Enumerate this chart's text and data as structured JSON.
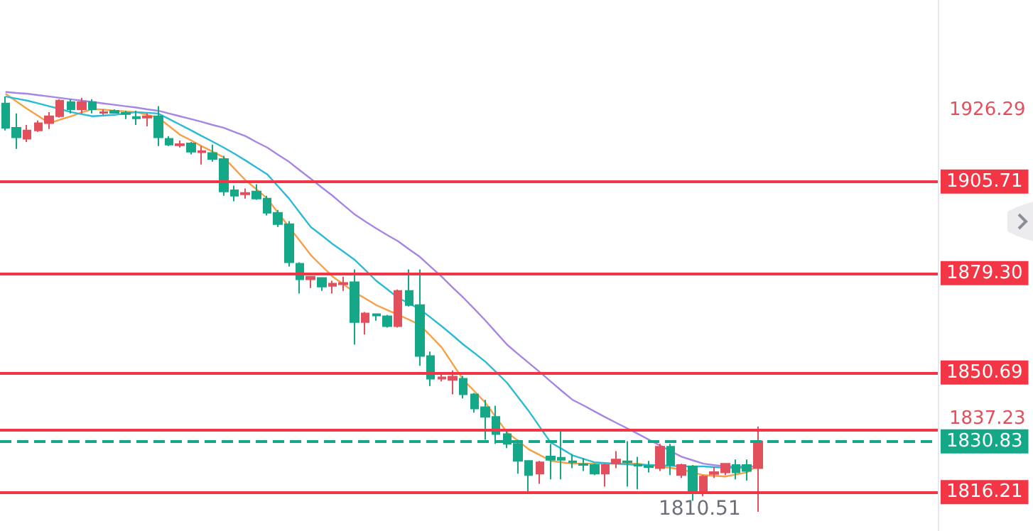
{
  "chart_data": {
    "type": "candlestick",
    "categories": [
      null,
      null,
      null,
      null,
      null,
      null,
      null,
      null,
      null,
      null,
      null,
      null,
      null,
      null,
      null,
      null,
      null,
      null,
      null,
      null,
      null,
      null,
      null,
      null,
      null,
      null,
      null,
      null,
      null,
      null,
      null,
      null,
      null,
      null,
      null,
      null,
      null,
      null,
      null,
      null,
      null,
      null,
      null,
      null,
      null,
      null,
      null,
      null,
      null,
      null,
      null,
      null,
      null,
      null,
      null,
      null,
      null,
      null,
      null,
      null,
      null,
      null,
      null,
      null,
      null,
      null,
      null,
      null,
      null,
      null,
      null,
      null,
      null,
      null,
      null,
      null,
      null,
      null,
      null,
      null,
      null,
      null,
      null,
      null,
      null,
      null
    ],
    "ohlc": [
      [
        1928.2,
        1930.2,
        1920.4,
        1921.2
      ],
      [
        1921.2,
        1925.3,
        1915.1,
        1918.4
      ],
      [
        1918.0,
        1922.0,
        1917.1,
        1920.4
      ],
      [
        1920.4,
        1923.3,
        1920.0,
        1922.5
      ],
      [
        1922.5,
        1925.7,
        1920.8,
        1924.5
      ],
      [
        1924.5,
        1929.4,
        1924.1,
        1929.0
      ],
      [
        1928.6,
        1929.4,
        1925.3,
        1926.5
      ],
      [
        1926.5,
        1929.8,
        1925.3,
        1928.6
      ],
      [
        1928.6,
        1929.4,
        1925.3,
        1926.5
      ],
      [
        1925.5,
        1926.5,
        1924.9,
        1925.7
      ],
      [
        1926.1,
        1926.5,
        1925.3,
        1925.5
      ],
      [
        1925.5,
        1926.1,
        1923.7,
        1925.1
      ],
      [
        1924.3,
        1926.1,
        1922.0,
        1923.9
      ],
      [
        1924.1,
        1925.3,
        1921.6,
        1924.5
      ],
      [
        1924.5,
        1927.4,
        1915.9,
        1918.4
      ],
      [
        1918.0,
        1918.8,
        1915.9,
        1916.3
      ],
      [
        1916.1,
        1917.5,
        1915.5,
        1916.5
      ],
      [
        1916.7,
        1917.1,
        1913.5,
        1914.3
      ],
      [
        1914.1,
        1915.9,
        1910.6,
        1914.5
      ],
      [
        1913.9,
        1916.3,
        1911.4,
        1912.2
      ],
      [
        1912.2,
        1913.1,
        1901.6,
        1902.8
      ],
      [
        1903.2,
        1904.5,
        1900.0,
        1901.6
      ],
      [
        1902.0,
        1903.7,
        1900.8,
        1902.4
      ],
      [
        1902.8,
        1904.9,
        1900.4,
        1900.8
      ],
      [
        1900.8,
        1901.6,
        1895.9,
        1896.7
      ],
      [
        1896.7,
        1897.5,
        1892.6,
        1893.4
      ],
      [
        1893.4,
        1894.3,
        1881.2,
        1882.4
      ],
      [
        1882.0,
        1882.4,
        1873.4,
        1877.5
      ],
      [
        1877.5,
        1878.3,
        1875.0,
        1878.3
      ],
      [
        1877.9,
        1877.9,
        1874.2,
        1875.4
      ],
      [
        1875.6,
        1877.1,
        1873.4,
        1876.3
      ],
      [
        1876.1,
        1878.3,
        1874.2,
        1876.5
      ],
      [
        1876.7,
        1880.4,
        1858.7,
        1865.2
      ],
      [
        1865.2,
        1868.1,
        1861.6,
        1867.7
      ],
      [
        1867.5,
        1867.7,
        1865.6,
        1867.1
      ],
      [
        1866.9,
        1867.3,
        1863.6,
        1864.0
      ],
      [
        1864.0,
        1874.6,
        1863.6,
        1874.2
      ],
      [
        1874.2,
        1880.4,
        1869.7,
        1870.1
      ],
      [
        1870.1,
        1880.4,
        1852.6,
        1855.4
      ],
      [
        1855.4,
        1856.7,
        1846.8,
        1848.9
      ],
      [
        1848.9,
        1850.1,
        1848.1,
        1849.3
      ],
      [
        1848.5,
        1851.3,
        1844.4,
        1849.5
      ],
      [
        1848.9,
        1849.7,
        1843.2,
        1844.4
      ],
      [
        1844.4,
        1844.8,
        1839.1,
        1840.3
      ],
      [
        1840.7,
        1842.8,
        1831.3,
        1837.9
      ],
      [
        1837.9,
        1841.1,
        1830.1,
        1832.9
      ],
      [
        1832.9,
        1833.8,
        1828.9,
        1830.1
      ],
      [
        1830.1,
        1831.3,
        1821.5,
        1825.2
      ],
      [
        1825.2,
        1825.2,
        1816.2,
        1821.1
      ],
      [
        1821.5,
        1825.2,
        1818.6,
        1824.8
      ],
      [
        1826.5,
        1830.1,
        1819.9,
        1825.5
      ],
      [
        1826.1,
        1834.2,
        1819.9,
        1825.5
      ],
      [
        1825.1,
        1827.2,
        1823.1,
        1824.8
      ],
      [
        1824.3,
        1826.0,
        1822.3,
        1824.0
      ],
      [
        1824.0,
        1824.4,
        1821.1,
        1821.5
      ],
      [
        1821.5,
        1824.4,
        1817.8,
        1824.0
      ],
      [
        1824.5,
        1828.0,
        1823.1,
        1825.6
      ],
      [
        1825.1,
        1830.9,
        1817.8,
        1824.8
      ],
      [
        1824.1,
        1826.4,
        1817.0,
        1823.8
      ],
      [
        1823.7,
        1825.2,
        1821.9,
        1823.4
      ],
      [
        1823.1,
        1830.1,
        1822.3,
        1829.3
      ],
      [
        1829.3,
        1830.1,
        1821.1,
        1824.0
      ],
      [
        1821.1,
        1824.4,
        1820.3,
        1824.0
      ],
      [
        1823.6,
        1824.0,
        1813.7,
        1816.2
      ],
      [
        1816.2,
        1821.1,
        1815.0,
        1820.7
      ],
      [
        1821.4,
        1823.5,
        1820.3,
        1822.0
      ],
      [
        1821.9,
        1824.4,
        1821.1,
        1824.4
      ],
      [
        1824.0,
        1825.6,
        1819.9,
        1821.9
      ],
      [
        1824.0,
        1825.6,
        1819.5,
        1822.3
      ],
      [
        1823.1,
        1835.1,
        1810.51,
        1830.83
      ],
      null,
      null,
      null,
      null,
      null,
      null,
      null,
      null,
      null,
      null,
      null,
      null,
      null,
      null,
      null,
      null
    ],
    "colors": [
      "#14a889",
      "#14a889",
      "#e2505d",
      "#e2505d",
      "#e2505d",
      "#e2505d",
      "#14a889",
      "#e2505d",
      "#14a889",
      "#e2505d",
      "#14a889",
      "#14a889",
      "#14a889",
      "#e2505d",
      "#14a889",
      "#14a889",
      "#e2505d",
      "#14a889",
      "#e2505d",
      "#14a889",
      "#14a889",
      "#14a889",
      "#e2505d",
      "#14a889",
      "#14a889",
      "#14a889",
      "#14a889",
      "#14a889",
      "#e2505d",
      "#14a889",
      "#e2505d",
      "#e2505d",
      "#14a889",
      "#e2505d",
      "#14a889",
      "#14a889",
      "#e2505d",
      "#14a889",
      "#14a889",
      "#14a889",
      "#e2505d",
      "#e2505d",
      "#14a889",
      "#14a889",
      "#14a889",
      "#14a889",
      "#14a889",
      "#14a889",
      "#14a889",
      "#e2505d",
      "#14a889",
      "#14a889",
      "#14a889",
      "#14a889",
      "#14a889",
      "#e2505d",
      "#e2505d",
      "#14a889",
      "#14a889",
      "#14a889",
      "#e2505d",
      "#14a889",
      "#e2505d",
      "#14a889",
      "#e2505d",
      "#e2505d",
      "#e2505d",
      "#14a889",
      "#14a889",
      "#e2505d",
      null,
      null,
      null,
      null,
      null,
      null,
      null,
      null,
      null,
      null,
      null,
      null,
      null,
      null,
      null,
      null
    ],
    "series": [
      {
        "type": "line",
        "color": "#f7a045",
        "values": [
          1931.0,
          1928.8,
          1926.6,
          1924.6,
          1922.5,
          1923.5,
          1924.5,
          1925.6,
          1926.6,
          1926.4,
          1926.1,
          1925.9,
          1925.7,
          1924.9,
          1924.1,
          1921.7,
          1919.2,
          1917.6,
          1915.9,
          1914.3,
          1912.7,
          1909.4,
          1906.1,
          1903.5,
          1900.8,
          1896.7,
          1892.6,
          1888.6,
          1884.5,
          1881.4,
          1878.3,
          1876.1,
          1873.8,
          1872.0,
          1870.1,
          1868.7,
          1867.3,
          1865.9,
          1864.4,
          1861.2,
          1857.9,
          1853.2,
          1848.5,
          1845.3,
          1842.0,
          1837.7,
          1833.4,
          1831.0,
          1828.5,
          1826.9,
          1825.2,
          1824.8,
          1824.4,
          1824.4,
          1824.4,
          1824.4,
          1824.4,
          1824.4,
          1824.4,
          1824.0,
          1823.6,
          1823.2,
          1822.7,
          1821.9,
          1821.1,
          1820.9,
          1820.7,
          1821.3,
          1821.9,
          1824.0,
          null,
          null,
          null,
          null,
          null,
          null,
          null,
          null,
          null,
          null,
          null,
          null,
          null,
          null,
          null,
          null
        ]
      },
      {
        "type": "line",
        "color": "#2bbbd6",
        "values": [
          1930.2,
          1929.6,
          1929.0,
          1928.2,
          1927.4,
          1926.6,
          1925.7,
          1925.1,
          1924.5,
          1924.7,
          1924.9,
          1925.3,
          1925.7,
          1925.5,
          1925.3,
          1923.7,
          1922.1,
          1920.5,
          1918.8,
          1917.2,
          1915.5,
          1913.7,
          1911.8,
          1909.8,
          1907.8,
          1904.3,
          1900.8,
          1896.7,
          1892.6,
          1890.2,
          1887.7,
          1885.5,
          1883.2,
          1880.2,
          1877.1,
          1874.7,
          1872.2,
          1870.6,
          1868.9,
          1866.5,
          1864.0,
          1861.4,
          1858.7,
          1856.3,
          1853.8,
          1850.8,
          1847.7,
          1843.6,
          1839.5,
          1835.0,
          1830.5,
          1828.7,
          1826.8,
          1825.8,
          1824.8,
          1824.6,
          1824.4,
          1824.2,
          1824.0,
          1824.0,
          1824.0,
          1823.8,
          1823.6,
          1823.6,
          1823.6,
          1823.4,
          1823.2,
          1823.2,
          1823.2,
          null,
          null,
          null,
          null,
          null,
          null,
          null,
          null,
          null,
          null,
          null,
          null,
          null,
          null,
          null,
          null,
          null
        ]
      },
      {
        "type": "line",
        "color": "#a686e4",
        "values": [
          1931.5,
          1931.2,
          1931.0,
          1930.6,
          1930.2,
          1929.8,
          1929.4,
          1929.0,
          1928.6,
          1928.2,
          1927.8,
          1927.4,
          1927.0,
          1926.5,
          1926.1,
          1925.3,
          1924.5,
          1923.7,
          1922.9,
          1922.0,
          1921.2,
          1920.0,
          1918.8,
          1917.1,
          1915.5,
          1913.4,
          1911.4,
          1908.9,
          1906.5,
          1904.0,
          1901.6,
          1898.9,
          1896.3,
          1894.2,
          1892.2,
          1890.3,
          1888.5,
          1886.2,
          1884.0,
          1881.1,
          1878.3,
          1875.2,
          1872.2,
          1869.0,
          1865.7,
          1862.2,
          1858.7,
          1856.0,
          1853.4,
          1850.8,
          1848.1,
          1845.4,
          1842.8,
          1841.2,
          1839.5,
          1837.8,
          1836.2,
          1834.6,
          1833.0,
          1831.3,
          1829.7,
          1828.0,
          1826.4,
          1825.4,
          1824.4,
          1824.0,
          1823.6,
          1823.6,
          1823.6,
          1823.6,
          null,
          null,
          null,
          null,
          null,
          null,
          null,
          null,
          null,
          null,
          null,
          null,
          null,
          null,
          null,
          null
        ]
      }
    ],
    "ylim": [
      1805,
      1958
    ],
    "yticks": [
      1926.29,
      1837.23
    ],
    "tick_labels": "y",
    "ref_lines": [
      {
        "axis": "y",
        "value": 1905.71,
        "label": "1905.71",
        "color": "#f23645"
      },
      {
        "axis": "y",
        "value": 1879.3,
        "label": "1879.30",
        "color": "#f23645"
      },
      {
        "axis": "y",
        "value": 1850.69,
        "label": "1850.69",
        "color": "#f23645"
      },
      {
        "axis": "y",
        "value": 1834.2,
        "color": "#f23645"
      },
      {
        "axis": "y",
        "value": 1830.83,
        "label": "1830.83",
        "color": "#14a889",
        "line_style": "dashed"
      },
      {
        "axis": "y",
        "value": 1816.21,
        "label": "1816.21",
        "color": "#f23645"
      }
    ],
    "annotations": [
      "1810.51"
    ]
  }
}
